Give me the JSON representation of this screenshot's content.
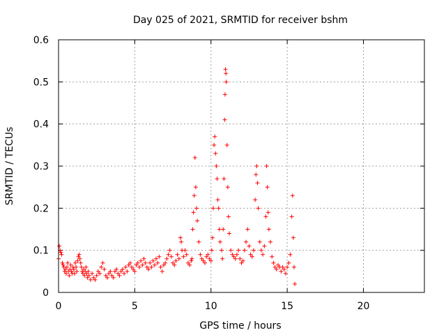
{
  "chart_data": {
    "type": "scatter",
    "title": "Day 025 of 2021, SRMTID for receiver bshm",
    "xlabel": "GPS time / hours",
    "ylabel": "SRMTID / TECUs",
    "xlim": [
      0,
      24
    ],
    "ylim": [
      0,
      0.6
    ],
    "x_ticks": [
      0,
      5,
      10,
      15,
      20
    ],
    "x_tick_labels": [
      "0",
      "5",
      "10",
      "15",
      "20"
    ],
    "y_ticks": [
      0,
      0.1,
      0.2,
      0.3,
      0.4,
      0.5,
      0.6
    ],
    "y_tick_labels": [
      "0",
      "0.1",
      "0.2",
      "0.3",
      "0.4",
      "0.5",
      "0.6"
    ],
    "grid": true,
    "marker": "+",
    "color": "#ff0000",
    "series": [
      {
        "name": "SRMTID",
        "points": [
          [
            0.0,
            0.08
          ],
          [
            0.05,
            0.11
          ],
          [
            0.1,
            0.1
          ],
          [
            0.15,
            0.095
          ],
          [
            0.2,
            0.09
          ],
          [
            0.25,
            0.07
          ],
          [
            0.3,
            0.065
          ],
          [
            0.35,
            0.06
          ],
          [
            0.4,
            0.05
          ],
          [
            0.45,
            0.055
          ],
          [
            0.5,
            0.045
          ],
          [
            0.55,
            0.06
          ],
          [
            0.6,
            0.07
          ],
          [
            0.65,
            0.05
          ],
          [
            0.7,
            0.04
          ],
          [
            0.75,
            0.055
          ],
          [
            0.8,
            0.065
          ],
          [
            0.85,
            0.05
          ],
          [
            0.9,
            0.045
          ],
          [
            0.95,
            0.06
          ],
          [
            1.0,
            0.055
          ],
          [
            1.05,
            0.045
          ],
          [
            1.1,
            0.07
          ],
          [
            1.15,
            0.06
          ],
          [
            1.2,
            0.05
          ],
          [
            1.25,
            0.075
          ],
          [
            1.3,
            0.085
          ],
          [
            1.35,
            0.09
          ],
          [
            1.4,
            0.08
          ],
          [
            1.45,
            0.07
          ],
          [
            1.5,
            0.06
          ],
          [
            1.55,
            0.05
          ],
          [
            1.6,
            0.045
          ],
          [
            1.65,
            0.055
          ],
          [
            1.7,
            0.04
          ],
          [
            1.75,
            0.05
          ],
          [
            1.8,
            0.06
          ],
          [
            1.85,
            0.045
          ],
          [
            1.9,
            0.035
          ],
          [
            1.95,
            0.05
          ],
          [
            2.0,
            0.04
          ],
          [
            2.1,
            0.03
          ],
          [
            2.2,
            0.045
          ],
          [
            2.3,
            0.035
          ],
          [
            2.4,
            0.03
          ],
          [
            2.5,
            0.04
          ],
          [
            2.6,
            0.05
          ],
          [
            2.7,
            0.045
          ],
          [
            2.8,
            0.06
          ],
          [
            2.9,
            0.07
          ],
          [
            3.0,
            0.055
          ],
          [
            3.1,
            0.04
          ],
          [
            3.2,
            0.035
          ],
          [
            3.3,
            0.045
          ],
          [
            3.4,
            0.05
          ],
          [
            3.5,
            0.04
          ],
          [
            3.6,
            0.035
          ],
          [
            3.7,
            0.05
          ],
          [
            3.8,
            0.055
          ],
          [
            3.9,
            0.045
          ],
          [
            4.0,
            0.04
          ],
          [
            4.1,
            0.05
          ],
          [
            4.2,
            0.055
          ],
          [
            4.3,
            0.045
          ],
          [
            4.4,
            0.06
          ],
          [
            4.5,
            0.05
          ],
          [
            4.6,
            0.065
          ],
          [
            4.7,
            0.07
          ],
          [
            4.8,
            0.06
          ],
          [
            4.9,
            0.055
          ],
          [
            5.0,
            0.05
          ],
          [
            5.1,
            0.065
          ],
          [
            5.2,
            0.07
          ],
          [
            5.3,
            0.06
          ],
          [
            5.4,
            0.075
          ],
          [
            5.5,
            0.065
          ],
          [
            5.6,
            0.08
          ],
          [
            5.7,
            0.07
          ],
          [
            5.8,
            0.06
          ],
          [
            5.9,
            0.055
          ],
          [
            6.0,
            0.07
          ],
          [
            6.1,
            0.06
          ],
          [
            6.2,
            0.075
          ],
          [
            6.3,
            0.065
          ],
          [
            6.4,
            0.08
          ],
          [
            6.5,
            0.07
          ],
          [
            6.6,
            0.085
          ],
          [
            6.7,
            0.06
          ],
          [
            6.8,
            0.05
          ],
          [
            6.9,
            0.065
          ],
          [
            7.0,
            0.07
          ],
          [
            7.1,
            0.08
          ],
          [
            7.2,
            0.09
          ],
          [
            7.3,
            0.1
          ],
          [
            7.4,
            0.085
          ],
          [
            7.5,
            0.07
          ],
          [
            7.6,
            0.065
          ],
          [
            7.7,
            0.075
          ],
          [
            7.8,
            0.09
          ],
          [
            7.9,
            0.08
          ],
          [
            8.0,
            0.13
          ],
          [
            8.05,
            0.12
          ],
          [
            8.1,
            0.1
          ],
          [
            8.2,
            0.085
          ],
          [
            8.3,
            0.1
          ],
          [
            8.4,
            0.09
          ],
          [
            8.5,
            0.07
          ],
          [
            8.6,
            0.065
          ],
          [
            8.7,
            0.075
          ],
          [
            8.75,
            0.08
          ],
          [
            8.8,
            0.15
          ],
          [
            8.85,
            0.19
          ],
          [
            8.9,
            0.23
          ],
          [
            8.95,
            0.32
          ],
          [
            9.0,
            0.25
          ],
          [
            9.05,
            0.2
          ],
          [
            9.1,
            0.17
          ],
          [
            9.2,
            0.12
          ],
          [
            9.3,
            0.09
          ],
          [
            9.4,
            0.08
          ],
          [
            9.5,
            0.075
          ],
          [
            9.6,
            0.07
          ],
          [
            9.7,
            0.085
          ],
          [
            9.8,
            0.09
          ],
          [
            9.9,
            0.08
          ],
          [
            10.0,
            0.075
          ],
          [
            10.05,
            0.1
          ],
          [
            10.1,
            0.13
          ],
          [
            10.15,
            0.2
          ],
          [
            10.2,
            0.35
          ],
          [
            10.25,
            0.37
          ],
          [
            10.3,
            0.33
          ],
          [
            10.35,
            0.3
          ],
          [
            10.4,
            0.27
          ],
          [
            10.45,
            0.22
          ],
          [
            10.5,
            0.2
          ],
          [
            10.55,
            0.15
          ],
          [
            10.6,
            0.12
          ],
          [
            10.7,
            0.1
          ],
          [
            10.75,
            0.08
          ],
          [
            10.8,
            0.15
          ],
          [
            10.85,
            0.27
          ],
          [
            10.9,
            0.41
          ],
          [
            10.92,
            0.47
          ],
          [
            10.95,
            0.53
          ],
          [
            10.98,
            0.52
          ],
          [
            11.0,
            0.5
          ],
          [
            11.05,
            0.35
          ],
          [
            11.1,
            0.25
          ],
          [
            11.15,
            0.18
          ],
          [
            11.2,
            0.14
          ],
          [
            11.3,
            0.1
          ],
          [
            11.4,
            0.09
          ],
          [
            11.5,
            0.085
          ],
          [
            11.6,
            0.08
          ],
          [
            11.7,
            0.09
          ],
          [
            11.8,
            0.1
          ],
          [
            11.9,
            0.08
          ],
          [
            12.0,
            0.07
          ],
          [
            12.1,
            0.075
          ],
          [
            12.2,
            0.1
          ],
          [
            12.3,
            0.12
          ],
          [
            12.4,
            0.15
          ],
          [
            12.5,
            0.11
          ],
          [
            12.6,
            0.09
          ],
          [
            12.7,
            0.085
          ],
          [
            12.8,
            0.1
          ],
          [
            12.9,
            0.22
          ],
          [
            12.95,
            0.28
          ],
          [
            13.0,
            0.3
          ],
          [
            13.05,
            0.26
          ],
          [
            13.1,
            0.2
          ],
          [
            13.2,
            0.12
          ],
          [
            13.3,
            0.1
          ],
          [
            13.4,
            0.09
          ],
          [
            13.5,
            0.11
          ],
          [
            13.6,
            0.18
          ],
          [
            13.65,
            0.3
          ],
          [
            13.7,
            0.25
          ],
          [
            13.75,
            0.19
          ],
          [
            13.8,
            0.15
          ],
          [
            13.9,
            0.12
          ],
          [
            14.0,
            0.085
          ],
          [
            14.1,
            0.07
          ],
          [
            14.2,
            0.06
          ],
          [
            14.3,
            0.055
          ],
          [
            14.4,
            0.065
          ],
          [
            14.5,
            0.06
          ],
          [
            14.6,
            0.05
          ],
          [
            14.7,
            0.06
          ],
          [
            14.8,
            0.055
          ],
          [
            14.9,
            0.045
          ],
          [
            15.0,
            0.06
          ],
          [
            15.1,
            0.07
          ],
          [
            15.2,
            0.09
          ],
          [
            15.3,
            0.18
          ],
          [
            15.35,
            0.23
          ],
          [
            15.4,
            0.13
          ],
          [
            15.45,
            0.06
          ],
          [
            15.5,
            0.02
          ]
        ]
      }
    ]
  }
}
